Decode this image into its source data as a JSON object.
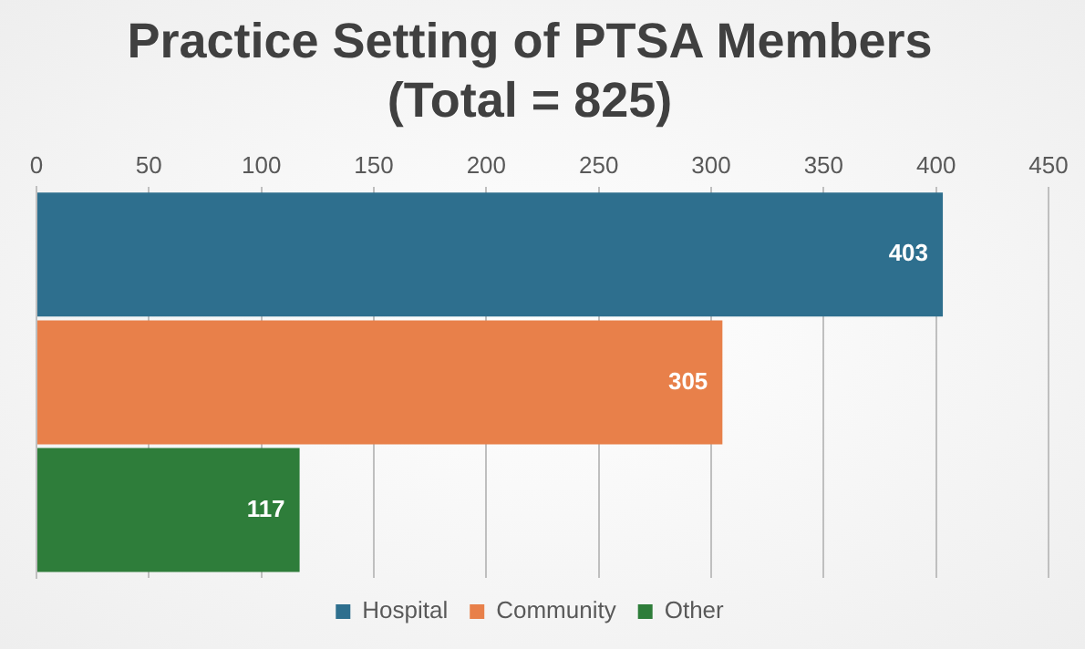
{
  "chart_data": {
    "type": "bar",
    "orientation": "horizontal",
    "title": "Practice Setting of PTSA Members",
    "subtitle": "(Total = 825)",
    "categories": [
      null
    ],
    "series": [
      {
        "name": "Hospital",
        "color": "#2e6f8e",
        "values": [
          403
        ]
      },
      {
        "name": "Community",
        "color": "#e8804a",
        "values": [
          305
        ]
      },
      {
        "name": "Other",
        "color": "#2e7d3a",
        "values": [
          117
        ]
      }
    ],
    "xlim": [
      0,
      450
    ],
    "xticks": [
      0,
      50,
      100,
      150,
      200,
      250,
      300,
      350,
      400,
      450
    ],
    "grid": "x",
    "legend": "bottom",
    "data_labels": true
  }
}
